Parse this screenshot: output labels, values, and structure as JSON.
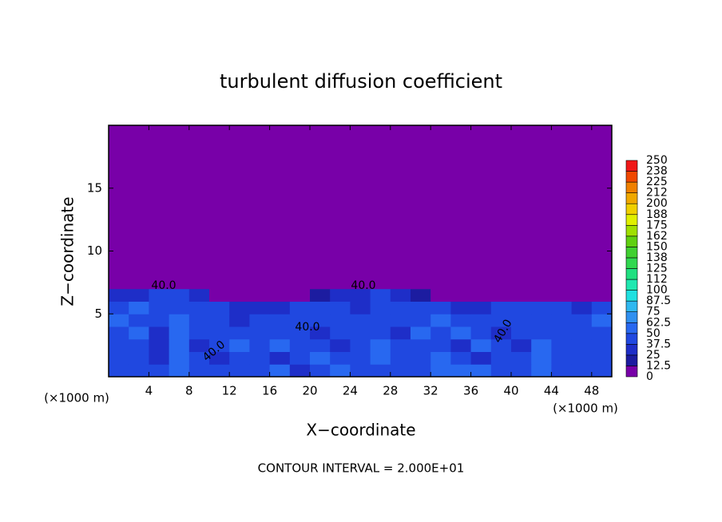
{
  "chart_data": {
    "type": "heatmap",
    "title": "turbulent diffusion coefficient",
    "x_label": "X−coordinate",
    "y_label": "Z−coordinate",
    "x_unit": "(×1000 m)",
    "footer": "CONTOUR INTERVAL = 2.000E+01",
    "contour_labels": [
      "40.0",
      "40.0",
      "40.0",
      "40.0",
      "40.0"
    ],
    "xlim": [
      0,
      50
    ],
    "ylim": [
      0,
      20
    ],
    "xticks": [
      4,
      8,
      12,
      16,
      20,
      24,
      28,
      32,
      36,
      40,
      44,
      48
    ],
    "yticks": [
      5,
      10,
      15
    ],
    "xbins": [
      0,
      2,
      4,
      6,
      8,
      10,
      12,
      14,
      16,
      18,
      20,
      22,
      24,
      26,
      28,
      30,
      32,
      34,
      36,
      38,
      40,
      42,
      44,
      46,
      48,
      50
    ],
    "zbins": [
      0,
      1,
      2,
      3,
      4,
      5,
      6,
      7,
      20
    ],
    "values": [
      [
        45,
        40,
        38,
        55,
        45,
        38,
        40,
        42,
        50,
        35,
        45,
        50,
        48,
        40,
        42,
        45,
        55,
        50,
        60,
        40,
        45,
        55,
        45,
        40,
        42
      ],
      [
        40,
        38,
        35,
        60,
        38,
        35,
        40,
        45,
        35,
        40,
        50,
        38,
        42,
        55,
        40,
        38,
        50,
        45,
        35,
        40,
        42,
        60,
        40,
        38,
        40
      ],
      [
        42,
        45,
        35,
        55,
        35,
        38,
        50,
        40,
        55,
        38,
        45,
        35,
        40,
        50,
        38,
        45,
        40,
        35,
        55,
        45,
        35,
        50,
        38,
        45,
        40
      ],
      [
        45,
        50,
        35,
        50,
        38,
        42,
        45,
        38,
        45,
        40,
        35,
        40,
        38,
        45,
        35,
        50,
        38,
        55,
        40,
        35,
        38,
        45,
        42,
        40,
        45
      ],
      [
        50,
        45,
        40,
        55,
        38,
        40,
        35,
        38,
        40,
        45,
        42,
        38,
        40,
        38,
        40,
        45,
        50,
        45,
        38,
        40,
        45,
        40,
        38,
        45,
        50
      ],
      [
        45,
        50,
        48,
        40,
        38,
        42,
        35,
        30,
        35,
        40,
        45,
        42,
        35,
        40,
        38,
        42,
        40,
        35,
        32,
        38,
        40,
        45,
        42,
        35,
        40
      ],
      [
        30,
        35,
        40,
        38,
        30,
        10,
        5,
        3,
        2,
        5,
        15,
        30,
        35,
        40,
        30,
        20,
        10,
        5,
        3,
        2,
        3,
        5,
        2,
        3,
        2
      ],
      [
        0,
        0,
        0,
        0,
        0,
        0,
        0,
        0,
        0,
        0,
        0,
        0,
        0,
        0,
        0,
        0,
        0,
        0,
        0,
        0,
        0,
        0,
        0,
        0,
        0
      ]
    ],
    "levels": [
      0,
      12.5,
      25,
      37.5,
      50,
      62.5,
      75,
      87.5,
      100,
      112,
      125,
      138,
      150,
      162,
      175,
      188,
      200,
      212,
      225,
      238,
      250
    ],
    "colors": [
      "#7800a8",
      "#1c1ca0",
      "#1e2ec8",
      "#2048e0",
      "#2868f0",
      "#3090f0",
      "#30b8f0",
      "#20e0e0",
      "#20e8b0",
      "#20e080",
      "#30d850",
      "#40d030",
      "#60d010",
      "#a0e000",
      "#e0f000",
      "#f0d000",
      "#f0a800",
      "#f08000",
      "#f04800",
      "#f01818",
      "#f08080"
    ]
  }
}
